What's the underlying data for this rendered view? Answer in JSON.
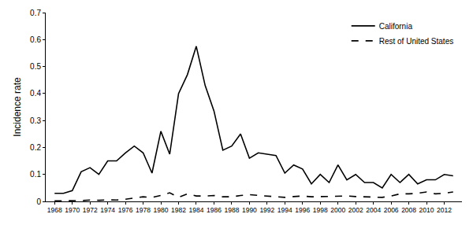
{
  "chart_data": {
    "type": "line",
    "y_label": "Incidence rate",
    "x": [
      1968,
      1969,
      1970,
      1971,
      1972,
      1973,
      1974,
      1975,
      1976,
      1977,
      1978,
      1979,
      1980,
      1981,
      1982,
      1983,
      1984,
      1985,
      1986,
      1987,
      1988,
      1989,
      1990,
      1991,
      1992,
      1993,
      1994,
      1995,
      1996,
      1997,
      1998,
      1999,
      2000,
      2001,
      2002,
      2003,
      2004,
      2005,
      2006,
      2007,
      2008,
      2009,
      2010,
      2011,
      2012,
      2013
    ],
    "series": [
      {
        "name": "California",
        "color": "#000000",
        "line_style": "solid",
        "values": [
          0.03,
          0.03,
          0.04,
          0.11,
          0.125,
          0.1,
          0.15,
          0.15,
          0.18,
          0.205,
          0.18,
          0.105,
          0.26,
          0.175,
          0.4,
          0.47,
          0.575,
          0.43,
          0.335,
          0.19,
          0.205,
          0.25,
          0.16,
          0.18,
          0.175,
          0.17,
          0.105,
          0.135,
          0.12,
          0.065,
          0.1,
          0.07,
          0.135,
          0.08,
          0.1,
          0.07,
          0.07,
          0.05,
          0.1,
          0.07,
          0.1,
          0.065,
          0.08,
          0.08,
          0.1,
          0.095
        ]
      },
      {
        "name": "Rest of United States",
        "color": "#000000",
        "line_style": "dash",
        "values": [
          0.002,
          0.002,
          0.002,
          0.003,
          0.005,
          0.004,
          0.006,
          0.005,
          0.008,
          0.012,
          0.017,
          0.015,
          0.022,
          0.032,
          0.015,
          0.028,
          0.02,
          0.02,
          0.022,
          0.017,
          0.017,
          0.022,
          0.025,
          0.022,
          0.02,
          0.017,
          0.015,
          0.018,
          0.02,
          0.017,
          0.018,
          0.018,
          0.02,
          0.02,
          0.018,
          0.017,
          0.018,
          0.015,
          0.02,
          0.028,
          0.028,
          0.03,
          0.035,
          0.028,
          0.03,
          0.035
        ]
      }
    ],
    "xlim": [
      1967,
      2014
    ],
    "xticks": [
      1968,
      1970,
      1972,
      1974,
      1976,
      1978,
      1980,
      1982,
      1984,
      1986,
      1988,
      1990,
      1992,
      1994,
      1996,
      1998,
      2000,
      2002,
      2004,
      2006,
      2008,
      2010,
      2012
    ],
    "ylim": [
      0,
      0.7
    ],
    "yticks": [
      0,
      0.1,
      0.2,
      0.3,
      0.4,
      0.5,
      0.6,
      0.7
    ],
    "grid": false,
    "legend": "top right"
  }
}
